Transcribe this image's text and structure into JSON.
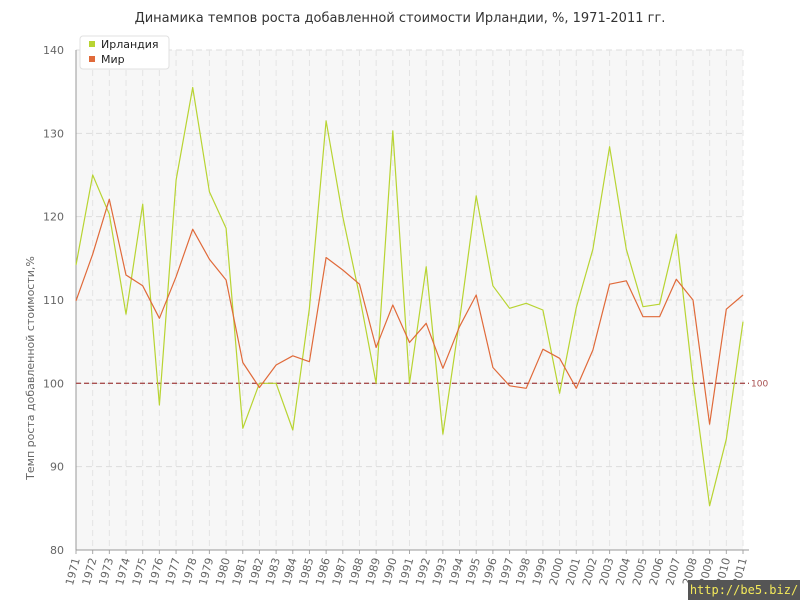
{
  "chart_data": {
    "type": "line",
    "title": "Динамика темпов роста добавленной стоимости Ирландии, %, 1971-2011 гг.",
    "ylabel": "Темп роста добавленной стоимости,%",
    "xlabel": "",
    "ylim": [
      80,
      140
    ],
    "yticks": [
      80,
      90,
      100,
      110,
      120,
      130,
      140
    ],
    "grid": true,
    "legend_position": "top-left",
    "reference_line": {
      "value": 100,
      "label": "100",
      "color": "#a85050"
    },
    "categories": [
      "1971",
      "1972",
      "1973",
      "1974",
      "1975",
      "1976",
      "1977",
      "1978",
      "1979",
      "1980",
      "1981",
      "1982",
      "1983",
      "1984",
      "1985",
      "1986",
      "1987",
      "1988",
      "1989",
      "1990",
      "1991",
      "1992",
      "1993",
      "1994",
      "1995",
      "1996",
      "1997",
      "1998",
      "1999",
      "2000",
      "2001",
      "2002",
      "2003",
      "2004",
      "2005",
      "2006",
      "2007",
      "2008",
      "2009",
      "2010",
      "2011"
    ],
    "series": [
      {
        "name": "Ирландия",
        "color": "#b8d432",
        "values": [
          114.2,
          125.0,
          120.3,
          108.3,
          121.5,
          97.4,
          124.4,
          135.5,
          123.0,
          118.6,
          94.6,
          100.0,
          100.0,
          94.4,
          109.0,
          131.5,
          120.0,
          110.5,
          100.0,
          130.3,
          100.0,
          114.0,
          93.9,
          107.5,
          122.5,
          111.7,
          109.0,
          109.6,
          108.8,
          98.8,
          109.1,
          116.1,
          128.4,
          116.1,
          109.2,
          109.5,
          117.9,
          100.3,
          85.3,
          93.3,
          107.4
        ]
      },
      {
        "name": "Мир",
        "color": "#e06a3a",
        "values": [
          109.9,
          115.5,
          122.1,
          113.0,
          111.7,
          107.8,
          112.8,
          118.5,
          114.9,
          112.4,
          102.5,
          99.5,
          102.2,
          103.3,
          102.6,
          115.1,
          113.6,
          111.9,
          104.3,
          109.4,
          104.9,
          107.2,
          101.8,
          106.8,
          110.6,
          101.9,
          99.7,
          99.4,
          104.1,
          103.0,
          99.4,
          104.0,
          111.9,
          112.3,
          108.0,
          108.0,
          112.5,
          110.0,
          95.1,
          108.9,
          110.6
        ]
      }
    ]
  },
  "watermark": "http://be5.biz/"
}
